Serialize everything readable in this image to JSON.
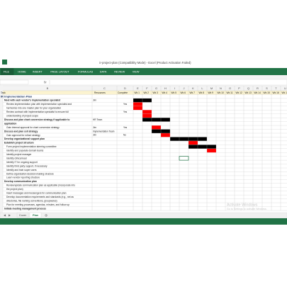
{
  "window": {
    "title": "ir-project-plan (Compatibility Mode) - Excel (Product Activation Failed)",
    "tabs": [
      "FILE",
      "HOME",
      "INSERT",
      "PAGE LAYOUT",
      "FORMULAS",
      "DATA",
      "REVIEW",
      "VIEW"
    ],
    "fx": "fx"
  },
  "sheet": {
    "columns": [
      "B",
      "C",
      "D",
      "E",
      "F",
      "G",
      "H",
      "I",
      "J",
      "K",
      "L",
      "M",
      "N",
      "O",
      "P",
      "Q",
      "R",
      "S",
      "T",
      "U"
    ],
    "header": [
      "Task",
      "Resources",
      "Complete"
    ],
    "weeks": [
      "Wk 1",
      "Wk 2",
      "Wk 3",
      "Wk 4",
      "Wk 5",
      "Wk 6",
      "Wk 7",
      "Wk 8",
      "Wk 9",
      "Wk 10",
      "Wk 11",
      "Wk 12",
      "Wk 13",
      "Wk 14",
      "Wk 15",
      "Wk 16",
      "Wk 17"
    ],
    "title": "IR Implementation Plan",
    "rows": [
      {
        "task": "Meet with each vendor's implementation specialist",
        "resource": "Jim",
        "bold": true,
        "bar": [
          1,
          2
        ],
        "bar_color": "#000000"
      },
      {
        "task": "Review implementation plan with implementation specialist and",
        "complete": "Yes",
        "bar": [
          1,
          1
        ],
        "bar_color": "#ff0000"
      },
      {
        "task": "harmonize into one master plan for your organization",
        "bar": [
          1,
          1
        ],
        "bar_color": "#ff0000"
      },
      {
        "task": "Review contract with implementation specialist to ensure full",
        "complete": "Yes",
        "bar": [
          2,
          2
        ],
        "bar_color": "#ff0000"
      },
      {
        "task": "understanding of project scope",
        "bar": [
          2,
          2
        ],
        "bar_color": "#ff0000"
      },
      {
        "task": "Discuss and plan chart conversion strategy if applicable to",
        "resource": "HR Team",
        "bold": true,
        "bar": [
          2,
          4
        ],
        "bar_color": "#000000"
      },
      {
        "task": "application",
        "bold": true
      },
      {
        "task": "Gain internal approval for chart conversion strategy",
        "resource": "Jim",
        "complete": "Yes",
        "bar": [
          3,
          3
        ],
        "bar_color": "#ff0000"
      },
      {
        "task": "Discuss and plan cell strategy",
        "resource": "Implementation Team",
        "bold": true,
        "bar": [
          3,
          4
        ],
        "bar_color": "#000000"
      },
      {
        "task": "Gain approval for rollout strategy",
        "resource": "Jim",
        "complete": "No",
        "bar": [
          4,
          4
        ],
        "bar_color": "#ff0000"
      },
      {
        "task": "Develop organizational support plan",
        "bold": true,
        "bar": [
          5,
          8
        ],
        "bar_color": "#000000"
      },
      {
        "task": "Establish project structure",
        "bold": true,
        "bar": [
          7,
          7
        ],
        "bar_color": "#ff0000"
      },
      {
        "task": "Form project implementation steering committee",
        "bar": [
          7,
          9
        ],
        "bar_color": "#000000"
      },
      {
        "task": "Identify and populate domain teams",
        "bar": [
          9,
          9
        ],
        "bar_color": "#ff0000"
      },
      {
        "task": "Identify project manager"
      },
      {
        "task": "Identify clinical lead"
      },
      {
        "task": "Identify IT for ongoing support"
      },
      {
        "task": "Identify third party support, if necessary"
      },
      {
        "task": "Identify and train super users"
      },
      {
        "task": "Define organization decision-making structure"
      },
      {
        "task": "Learn vendor reporting structure"
      },
      {
        "task": "Develop communication plan",
        "bold": true
      },
      {
        "task": "Review/update communication plan as applicable (incorporate into"
      },
      {
        "task": "the project plan)"
      },
      {
        "task": "Insert messages and messengers for communication plan"
      },
      {
        "task": "Develop documentation requirements and standards (e.g., net as"
      },
      {
        "task": "directories, file naming conventions, groupwares)"
      },
      {
        "task": "Plan for meeting processes, agendas, minutes, and follow up"
      },
      {
        "task": "Initiate meeting management process",
        "bold": true
      }
    ]
  },
  "sheet_tabs": [
    "Cover",
    "Plan"
  ],
  "watermark": [
    "Activate Windows",
    "Go to Settings to activate Windows."
  ]
}
